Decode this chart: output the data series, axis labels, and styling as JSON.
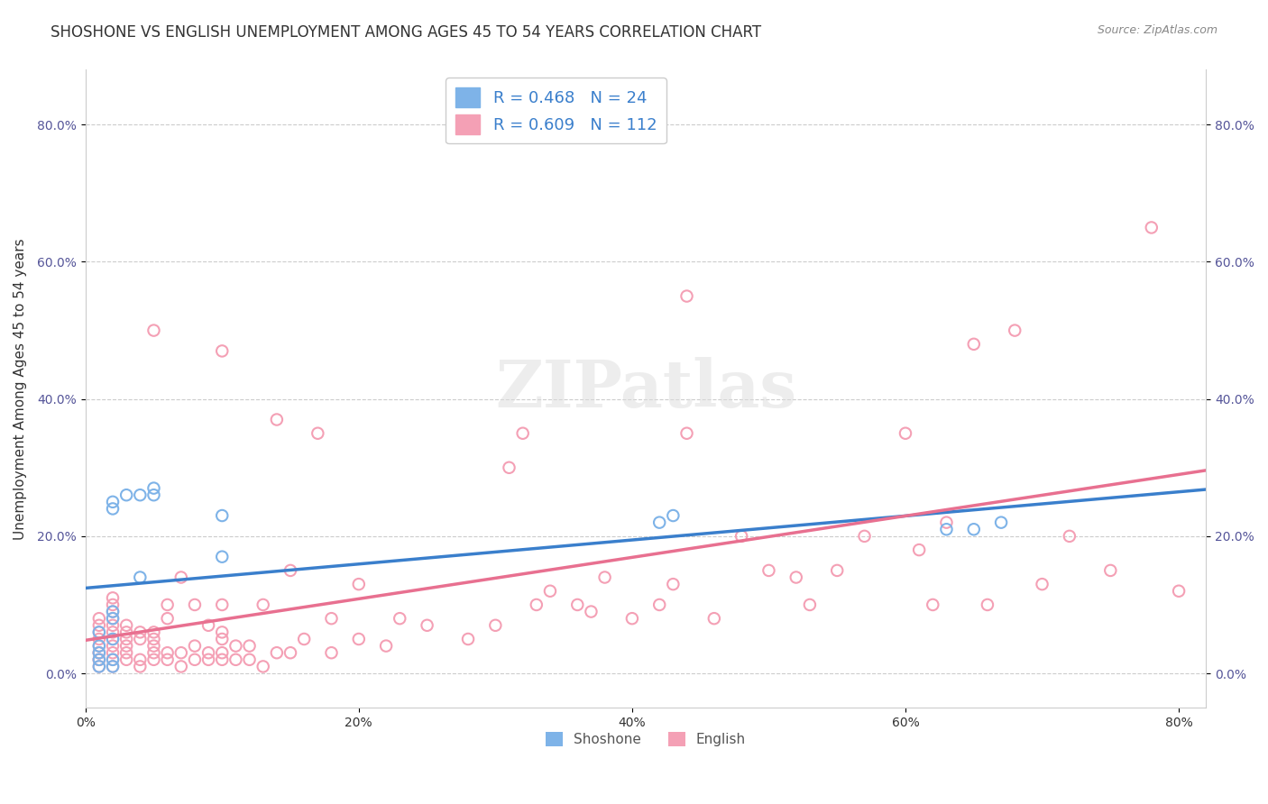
{
  "title": "SHOSHONE VS ENGLISH UNEMPLOYMENT AMONG AGES 45 TO 54 YEARS CORRELATION CHART",
  "source": "Source: ZipAtlas.com",
  "xlabel": "",
  "ylabel": "Unemployment Among Ages 45 to 54 years",
  "shoshone_R": 0.468,
  "shoshone_N": 24,
  "english_R": 0.609,
  "english_N": 112,
  "shoshone_color": "#7EB3E8",
  "english_color": "#F4A0B5",
  "shoshone_line_color": "#3A7FCC",
  "english_line_color": "#E87090",
  "xlim": [
    0,
    0.82
  ],
  "ylim": [
    -0.05,
    0.88
  ],
  "xticks": [
    0.0,
    0.2,
    0.4,
    0.6,
    0.8
  ],
  "yticks": [
    0.0,
    0.2,
    0.4,
    0.6,
    0.8
  ],
  "shoshone_x": [
    0.01,
    0.01,
    0.01,
    0.01,
    0.01,
    0.02,
    0.02,
    0.02,
    0.02,
    0.02,
    0.02,
    0.02,
    0.03,
    0.04,
    0.04,
    0.05,
    0.05,
    0.1,
    0.1,
    0.42,
    0.43,
    0.63,
    0.65,
    0.67
  ],
  "shoshone_y": [
    0.01,
    0.02,
    0.03,
    0.04,
    0.06,
    0.01,
    0.02,
    0.05,
    0.08,
    0.09,
    0.24,
    0.25,
    0.26,
    0.14,
    0.26,
    0.26,
    0.27,
    0.17,
    0.23,
    0.22,
    0.23,
    0.21,
    0.21,
    0.22
  ],
  "english_x": [
    0.01,
    0.01,
    0.01,
    0.01,
    0.01,
    0.01,
    0.01,
    0.01,
    0.01,
    0.01,
    0.02,
    0.02,
    0.02,
    0.02,
    0.02,
    0.02,
    0.02,
    0.02,
    0.02,
    0.02,
    0.02,
    0.03,
    0.03,
    0.03,
    0.03,
    0.03,
    0.03,
    0.04,
    0.04,
    0.04,
    0.04,
    0.05,
    0.05,
    0.05,
    0.05,
    0.05,
    0.05,
    0.06,
    0.06,
    0.06,
    0.06,
    0.07,
    0.07,
    0.07,
    0.08,
    0.08,
    0.08,
    0.09,
    0.09,
    0.09,
    0.1,
    0.1,
    0.1,
    0.1,
    0.1,
    0.1,
    0.11,
    0.11,
    0.12,
    0.12,
    0.13,
    0.13,
    0.14,
    0.14,
    0.15,
    0.15,
    0.16,
    0.17,
    0.18,
    0.18,
    0.2,
    0.2,
    0.22,
    0.23,
    0.25,
    0.28,
    0.3,
    0.31,
    0.32,
    0.33,
    0.34,
    0.36,
    0.37,
    0.38,
    0.4,
    0.42,
    0.43,
    0.44,
    0.44,
    0.46,
    0.48,
    0.5,
    0.52,
    0.53,
    0.55,
    0.57,
    0.6,
    0.61,
    0.62,
    0.63,
    0.65,
    0.66,
    0.68,
    0.7,
    0.72,
    0.75,
    0.78,
    0.8
  ],
  "english_y": [
    0.01,
    0.02,
    0.03,
    0.02,
    0.03,
    0.04,
    0.05,
    0.06,
    0.07,
    0.08,
    0.01,
    0.02,
    0.03,
    0.04,
    0.05,
    0.06,
    0.07,
    0.08,
    0.09,
    0.1,
    0.11,
    0.02,
    0.03,
    0.04,
    0.05,
    0.06,
    0.07,
    0.01,
    0.02,
    0.05,
    0.06,
    0.02,
    0.03,
    0.04,
    0.05,
    0.06,
    0.5,
    0.02,
    0.03,
    0.08,
    0.1,
    0.01,
    0.03,
    0.14,
    0.02,
    0.04,
    0.1,
    0.02,
    0.03,
    0.07,
    0.02,
    0.03,
    0.05,
    0.06,
    0.1,
    0.47,
    0.02,
    0.04,
    0.02,
    0.04,
    0.01,
    0.1,
    0.03,
    0.37,
    0.03,
    0.15,
    0.05,
    0.35,
    0.03,
    0.08,
    0.05,
    0.13,
    0.04,
    0.08,
    0.07,
    0.05,
    0.07,
    0.3,
    0.35,
    0.1,
    0.12,
    0.1,
    0.09,
    0.14,
    0.08,
    0.1,
    0.13,
    0.35,
    0.55,
    0.08,
    0.2,
    0.15,
    0.14,
    0.1,
    0.15,
    0.2,
    0.35,
    0.18,
    0.1,
    0.22,
    0.48,
    0.1,
    0.5,
    0.13,
    0.2,
    0.15,
    0.65,
    0.12
  ],
  "background_color": "#ffffff",
  "watermark_text": "ZIPatlas",
  "grid_color": "#cccccc",
  "marker_size": 80,
  "legend_fontsize": 13,
  "axis_label_fontsize": 11,
  "title_fontsize": 12
}
